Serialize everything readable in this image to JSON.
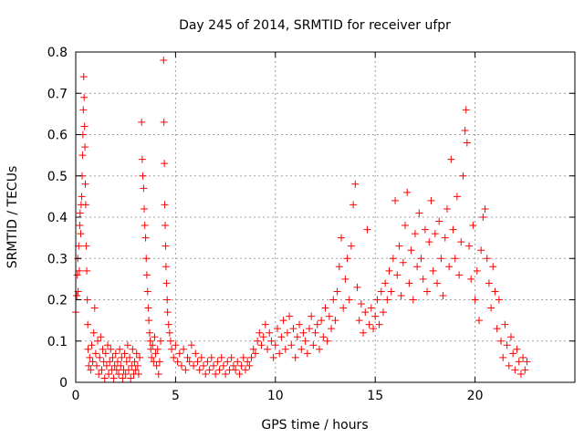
{
  "chart_data": {
    "type": "scatter",
    "title": "Day 245 of 2014, SRMTID for receiver ufpr",
    "xlabel": "GPS time / hours",
    "ylabel": "SRMTID / TECUs",
    "xlim": [
      0,
      25
    ],
    "ylim": [
      0,
      0.8
    ],
    "grid": true,
    "marker": "plus",
    "series_color": "#ff0000",
    "x_ticks": [
      {
        "value": 0,
        "label": "0"
      },
      {
        "value": 5,
        "label": "5"
      },
      {
        "value": 10,
        "label": "10"
      },
      {
        "value": 15,
        "label": "15"
      },
      {
        "value": 20,
        "label": "20"
      }
    ],
    "y_ticks": [
      {
        "value": 0,
        "label": "0"
      },
      {
        "value": 0.1,
        "label": "0.1"
      },
      {
        "value": 0.2,
        "label": "0.2"
      },
      {
        "value": 0.3,
        "label": "0.3"
      },
      {
        "value": 0.4,
        "label": "0.4"
      },
      {
        "value": 0.5,
        "label": "0.5"
      },
      {
        "value": 0.6,
        "label": "0.6"
      },
      {
        "value": 0.7,
        "label": "0.7"
      },
      {
        "value": 0.8,
        "label": "0.8"
      }
    ],
    "series": [
      {
        "name": "SRMTID",
        "points": [
          [
            0.0,
            0.17
          ],
          [
            0.05,
            0.21
          ],
          [
            0.08,
            0.26
          ],
          [
            0.1,
            0.3
          ],
          [
            0.12,
            0.22
          ],
          [
            0.15,
            0.33
          ],
          [
            0.18,
            0.27
          ],
          [
            0.2,
            0.38
          ],
          [
            0.22,
            0.41
          ],
          [
            0.25,
            0.36
          ],
          [
            0.27,
            0.43
          ],
          [
            0.3,
            0.45
          ],
          [
            0.32,
            0.5
          ],
          [
            0.34,
            0.55
          ],
          [
            0.36,
            0.6
          ],
          [
            0.38,
            0.66
          ],
          [
            0.4,
            0.74
          ],
          [
            0.42,
            0.69
          ],
          [
            0.44,
            0.62
          ],
          [
            0.46,
            0.57
          ],
          [
            0.48,
            0.48
          ],
          [
            0.5,
            0.43
          ],
          [
            0.52,
            0.33
          ],
          [
            0.55,
            0.27
          ],
          [
            0.58,
            0.2
          ],
          [
            0.6,
            0.14
          ],
          [
            0.62,
            0.08
          ],
          [
            0.65,
            0.04
          ],
          [
            0.7,
            0.06
          ],
          [
            0.75,
            0.03
          ],
          [
            0.8,
            0.09
          ],
          [
            0.85,
            0.05
          ],
          [
            0.9,
            0.12
          ],
          [
            0.95,
            0.18
          ],
          [
            1.0,
            0.07
          ],
          [
            1.05,
            0.04
          ],
          [
            1.1,
            0.1
          ],
          [
            1.15,
            0.02
          ],
          [
            1.2,
            0.06
          ],
          [
            1.25,
            0.11
          ],
          [
            1.3,
            0.03
          ],
          [
            1.35,
            0.08
          ],
          [
            1.4,
            0.05
          ],
          [
            1.45,
            0.01
          ],
          [
            1.5,
            0.07
          ],
          [
            1.55,
            0.04
          ],
          [
            1.6,
            0.09
          ],
          [
            1.65,
            0.02
          ],
          [
            1.7,
            0.05
          ],
          [
            1.75,
            0.08
          ],
          [
            1.8,
            0.03
          ],
          [
            1.85,
            0.06
          ],
          [
            1.9,
            0.01
          ],
          [
            1.95,
            0.04
          ],
          [
            2.0,
            0.07
          ],
          [
            2.05,
            0.03
          ],
          [
            2.1,
            0.05
          ],
          [
            2.15,
            0.02
          ],
          [
            2.2,
            0.08
          ],
          [
            2.25,
            0.04
          ],
          [
            2.3,
            0.06
          ],
          [
            2.35,
            0.01
          ],
          [
            2.4,
            0.03
          ],
          [
            2.45,
            0.07
          ],
          [
            2.5,
            0.02
          ],
          [
            2.55,
            0.05
          ],
          [
            2.6,
            0.09
          ],
          [
            2.65,
            0.03
          ],
          [
            2.7,
            0.06
          ],
          [
            2.75,
            0.01
          ],
          [
            2.8,
            0.04
          ],
          [
            2.85,
            0.08
          ],
          [
            2.9,
            0.02
          ],
          [
            2.95,
            0.05
          ],
          [
            3.0,
            0.03
          ],
          [
            3.05,
            0.07
          ],
          [
            3.1,
            0.04
          ],
          [
            3.15,
            0.02
          ],
          [
            3.2,
            0.06
          ],
          [
            3.3,
            0.63
          ],
          [
            3.33,
            0.54
          ],
          [
            3.36,
            0.5
          ],
          [
            3.4,
            0.47
          ],
          [
            3.43,
            0.42
          ],
          [
            3.46,
            0.38
          ],
          [
            3.5,
            0.35
          ],
          [
            3.53,
            0.3
          ],
          [
            3.56,
            0.26
          ],
          [
            3.6,
            0.22
          ],
          [
            3.63,
            0.18
          ],
          [
            3.66,
            0.15
          ],
          [
            3.7,
            0.12
          ],
          [
            3.73,
            0.1
          ],
          [
            3.76,
            0.08
          ],
          [
            3.8,
            0.06
          ],
          [
            3.85,
            0.09
          ],
          [
            3.9,
            0.05
          ],
          [
            3.95,
            0.11
          ],
          [
            4.0,
            0.07
          ],
          [
            4.05,
            0.04
          ],
          [
            4.1,
            0.08
          ],
          [
            4.15,
            0.02
          ],
          [
            4.2,
            0.05
          ],
          [
            4.25,
            0.1
          ],
          [
            4.4,
            0.78
          ],
          [
            4.42,
            0.63
          ],
          [
            4.44,
            0.53
          ],
          [
            4.46,
            0.43
          ],
          [
            4.48,
            0.38
          ],
          [
            4.5,
            0.33
          ],
          [
            4.52,
            0.28
          ],
          [
            4.55,
            0.24
          ],
          [
            4.58,
            0.2
          ],
          [
            4.6,
            0.17
          ],
          [
            4.65,
            0.14
          ],
          [
            4.7,
            0.12
          ],
          [
            4.75,
            0.1
          ],
          [
            4.8,
            0.08
          ],
          [
            4.9,
            0.06
          ],
          [
            5.0,
            0.09
          ],
          [
            5.1,
            0.05
          ],
          [
            5.2,
            0.07
          ],
          [
            5.3,
            0.04
          ],
          [
            5.4,
            0.08
          ],
          [
            5.5,
            0.03
          ],
          [
            5.6,
            0.06
          ],
          [
            5.7,
            0.05
          ],
          [
            5.8,
            0.09
          ],
          [
            5.9,
            0.04
          ],
          [
            6.0,
            0.07
          ],
          [
            6.1,
            0.05
          ],
          [
            6.2,
            0.03
          ],
          [
            6.3,
            0.06
          ],
          [
            6.4,
            0.04
          ],
          [
            6.5,
            0.02
          ],
          [
            6.6,
            0.05
          ],
          [
            6.7,
            0.03
          ],
          [
            6.8,
            0.06
          ],
          [
            6.9,
            0.04
          ],
          [
            7.0,
            0.02
          ],
          [
            7.1,
            0.05
          ],
          [
            7.2,
            0.03
          ],
          [
            7.3,
            0.06
          ],
          [
            7.4,
            0.04
          ],
          [
            7.5,
            0.02
          ],
          [
            7.6,
            0.05
          ],
          [
            7.7,
            0.03
          ],
          [
            7.8,
            0.06
          ],
          [
            7.9,
            0.04
          ],
          [
            8.0,
            0.03
          ],
          [
            8.1,
            0.05
          ],
          [
            8.2,
            0.02
          ],
          [
            8.3,
            0.04
          ],
          [
            8.4,
            0.06
          ],
          [
            8.5,
            0.03
          ],
          [
            8.6,
            0.05
          ],
          [
            8.7,
            0.04
          ],
          [
            8.8,
            0.06
          ],
          [
            8.9,
            0.08
          ],
          [
            9.0,
            0.07
          ],
          [
            9.1,
            0.1
          ],
          [
            9.2,
            0.12
          ],
          [
            9.3,
            0.09
          ],
          [
            9.4,
            0.11
          ],
          [
            9.5,
            0.14
          ],
          [
            9.6,
            0.08
          ],
          [
            9.7,
            0.12
          ],
          [
            9.8,
            0.1
          ],
          [
            9.9,
            0.06
          ],
          [
            10.0,
            0.09
          ],
          [
            10.1,
            0.13
          ],
          [
            10.2,
            0.07
          ],
          [
            10.3,
            0.11
          ],
          [
            10.4,
            0.15
          ],
          [
            10.5,
            0.08
          ],
          [
            10.6,
            0.12
          ],
          [
            10.7,
            0.16
          ],
          [
            10.8,
            0.09
          ],
          [
            10.9,
            0.13
          ],
          [
            11.0,
            0.06
          ],
          [
            11.1,
            0.11
          ],
          [
            11.2,
            0.14
          ],
          [
            11.3,
            0.08
          ],
          [
            11.4,
            0.12
          ],
          [
            11.5,
            0.1
          ],
          [
            11.6,
            0.07
          ],
          [
            11.7,
            0.13
          ],
          [
            11.8,
            0.16
          ],
          [
            11.9,
            0.09
          ],
          [
            12.0,
            0.12
          ],
          [
            12.1,
            0.14
          ],
          [
            12.2,
            0.08
          ],
          [
            12.3,
            0.15
          ],
          [
            12.4,
            0.11
          ],
          [
            12.5,
            0.18
          ],
          [
            12.6,
            0.1
          ],
          [
            12.7,
            0.16
          ],
          [
            12.8,
            0.13
          ],
          [
            12.9,
            0.2
          ],
          [
            13.0,
            0.15
          ],
          [
            13.1,
            0.22
          ],
          [
            13.2,
            0.28
          ],
          [
            13.3,
            0.35
          ],
          [
            13.4,
            0.18
          ],
          [
            13.5,
            0.25
          ],
          [
            13.6,
            0.3
          ],
          [
            13.7,
            0.2
          ],
          [
            13.8,
            0.33
          ],
          [
            13.9,
            0.43
          ],
          [
            14.0,
            0.48
          ],
          [
            14.1,
            0.23
          ],
          [
            14.2,
            0.15
          ],
          [
            14.3,
            0.19
          ],
          [
            14.4,
            0.12
          ],
          [
            14.5,
            0.17
          ],
          [
            14.6,
            0.37
          ],
          [
            14.7,
            0.14
          ],
          [
            14.8,
            0.18
          ],
          [
            14.9,
            0.13
          ],
          [
            15.0,
            0.16
          ],
          [
            15.1,
            0.2
          ],
          [
            15.2,
            0.14
          ],
          [
            15.3,
            0.22
          ],
          [
            15.4,
            0.17
          ],
          [
            15.5,
            0.24
          ],
          [
            15.6,
            0.2
          ],
          [
            15.7,
            0.27
          ],
          [
            15.8,
            0.22
          ],
          [
            15.9,
            0.3
          ],
          [
            16.0,
            0.44
          ],
          [
            16.1,
            0.26
          ],
          [
            16.2,
            0.33
          ],
          [
            16.3,
            0.21
          ],
          [
            16.4,
            0.29
          ],
          [
            16.5,
            0.38
          ],
          [
            16.6,
            0.46
          ],
          [
            16.7,
            0.24
          ],
          [
            16.8,
            0.32
          ],
          [
            16.9,
            0.2
          ],
          [
            17.0,
            0.36
          ],
          [
            17.1,
            0.28
          ],
          [
            17.2,
            0.41
          ],
          [
            17.3,
            0.3
          ],
          [
            17.4,
            0.25
          ],
          [
            17.5,
            0.37
          ],
          [
            17.6,
            0.22
          ],
          [
            17.7,
            0.34
          ],
          [
            17.8,
            0.44
          ],
          [
            17.9,
            0.27
          ],
          [
            18.0,
            0.36
          ],
          [
            18.1,
            0.24
          ],
          [
            18.2,
            0.39
          ],
          [
            18.3,
            0.3
          ],
          [
            18.4,
            0.21
          ],
          [
            18.5,
            0.35
          ],
          [
            18.6,
            0.42
          ],
          [
            18.7,
            0.28
          ],
          [
            18.8,
            0.54
          ],
          [
            18.9,
            0.37
          ],
          [
            19.0,
            0.3
          ],
          [
            19.1,
            0.45
          ],
          [
            19.2,
            0.26
          ],
          [
            19.3,
            0.34
          ],
          [
            19.4,
            0.5
          ],
          [
            19.5,
            0.61
          ],
          [
            19.55,
            0.66
          ],
          [
            19.6,
            0.58
          ],
          [
            19.7,
            0.33
          ],
          [
            19.8,
            0.25
          ],
          [
            19.9,
            0.38
          ],
          [
            20.0,
            0.2
          ],
          [
            20.1,
            0.27
          ],
          [
            20.2,
            0.15
          ],
          [
            20.3,
            0.32
          ],
          [
            20.4,
            0.4
          ],
          [
            20.5,
            0.42
          ],
          [
            20.6,
            0.3
          ],
          [
            20.7,
            0.24
          ],
          [
            20.8,
            0.18
          ],
          [
            20.9,
            0.28
          ],
          [
            21.0,
            0.22
          ],
          [
            21.1,
            0.13
          ],
          [
            21.2,
            0.2
          ],
          [
            21.3,
            0.1
          ],
          [
            21.4,
            0.06
          ],
          [
            21.5,
            0.14
          ],
          [
            21.6,
            0.09
          ],
          [
            21.7,
            0.04
          ],
          [
            21.8,
            0.11
          ],
          [
            21.9,
            0.07
          ],
          [
            22.0,
            0.03
          ],
          [
            22.1,
            0.08
          ],
          [
            22.2,
            0.05
          ],
          [
            22.3,
            0.02
          ],
          [
            22.4,
            0.06
          ],
          [
            22.5,
            0.03
          ],
          [
            22.6,
            0.05
          ]
        ]
      }
    ]
  }
}
